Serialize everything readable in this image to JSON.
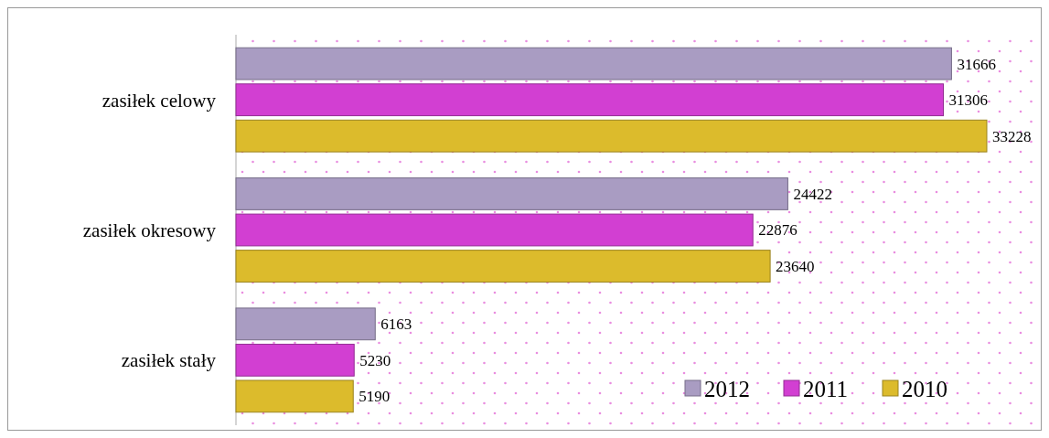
{
  "chart_data": {
    "type": "bar",
    "orientation": "horizontal",
    "categories": [
      "zasiłek celowy",
      "zasiłek okresowy",
      "zasiłek stały"
    ],
    "series": [
      {
        "name": "2012",
        "color": "#a99cc2",
        "values": [
          31666,
          24422,
          6163
        ]
      },
      {
        "name": "2011",
        "color": "#d23fd2",
        "values": [
          31306,
          22876,
          5230
        ]
      },
      {
        "name": "2010",
        "color": "#dcbb2c",
        "values": [
          33228,
          23640,
          5190
        ]
      }
    ],
    "data_labels": true,
    "legend": "bottom right"
  }
}
